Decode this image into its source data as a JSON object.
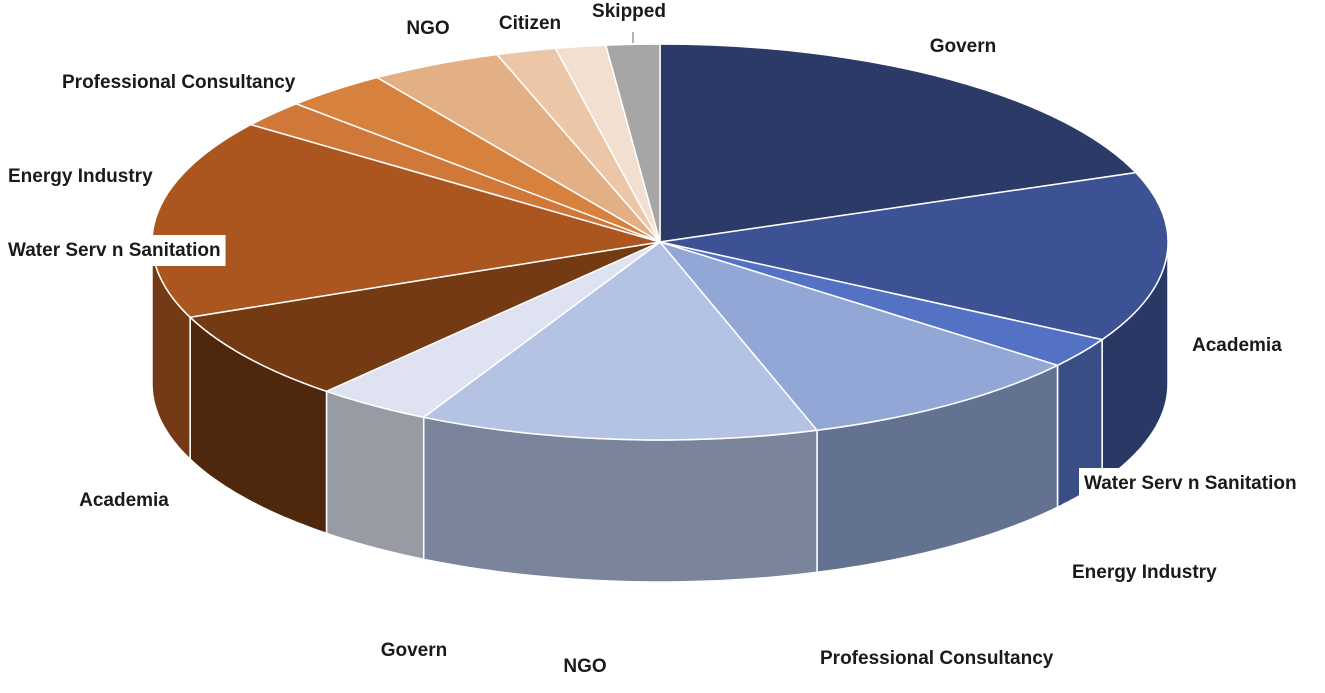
{
  "chart_data": {
    "type": "pie",
    "style": "3d",
    "title": "",
    "start": "top",
    "direction": "clockwise",
    "legend": "none",
    "slices": [
      {
        "label": "Govern",
        "value": 19.3,
        "color": "#2b3a66"
      },
      {
        "label": "Academia",
        "value": 13.9,
        "color": "#3c5294"
      },
      {
        "label": "Water Serv n Sanitation",
        "value": 2.5,
        "color": "#5472c4"
      },
      {
        "label": "Energy Industry",
        "value": 9.3,
        "color": "#93a7d6"
      },
      {
        "label": "Professional Consultancy",
        "value": 12.7,
        "color": "#b4c2e3"
      },
      {
        "label": "NGO",
        "value": 3.7,
        "color": "#dfe3f1"
      },
      {
        "label": "Govern",
        "value": 7.4,
        "color": "#733a13"
      },
      {
        "label": "Academia",
        "value": 16.3,
        "color": "#ab561f"
      },
      {
        "label": "Water Serv n Sanitation",
        "value": 2.2,
        "color": "#d0783a"
      },
      {
        "label": "Energy Industry",
        "value": 3.3,
        "color": "#d7813f"
      },
      {
        "label": "Professional Consultancy",
        "value": 4.2,
        "color": "#e3b086"
      },
      {
        "label": "NGO",
        "value": 1.9,
        "color": "#ebc7a8"
      },
      {
        "label": "Citizen",
        "value": 1.6,
        "color": "#f3dfcf"
      },
      {
        "label": "Skipped",
        "value": 1.7,
        "color": "#a6a6a6"
      }
    ]
  }
}
